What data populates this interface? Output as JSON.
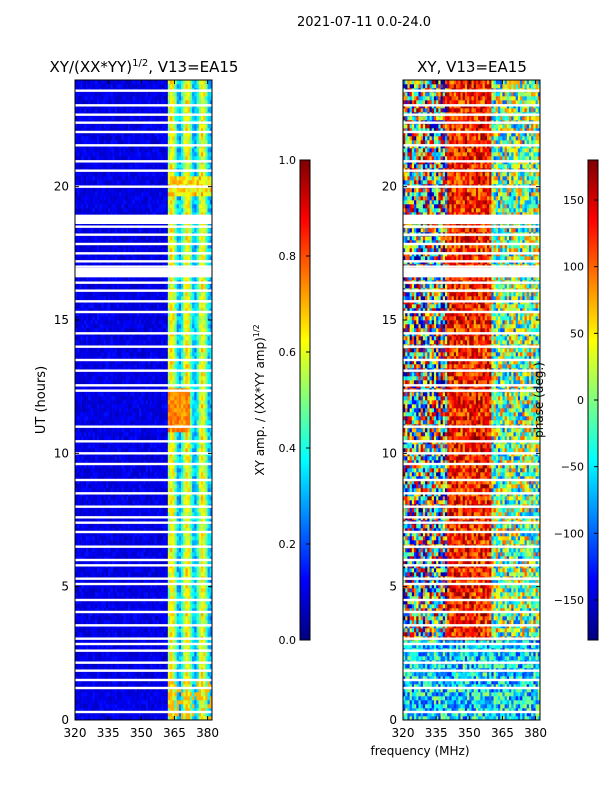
{
  "figure_title": "2021-07-11 0.0-24.0",
  "shared_xlabel": "frequency (MHz)",
  "colormap": [
    "#00007f",
    "#0000ff",
    "#007fff",
    "#00ffff",
    "#7fff7f",
    "#ffff00",
    "#ff7f00",
    "#ff0000",
    "#7f0000"
  ],
  "chart_data": [
    {
      "type": "heatmap",
      "title_main": "XY/(XX*YY)",
      "title_sup": "1/2",
      "title_rest": ", V13=EA15",
      "xlabel": "",
      "ylabel": "UT (hours)",
      "xlim": [
        320,
        382
      ],
      "ylim": [
        0,
        24
      ],
      "xticks": [
        320,
        335,
        350,
        365,
        380
      ],
      "yticks": [
        0,
        5,
        10,
        15,
        20
      ],
      "gap_hours": [
        0.3,
        1.2,
        1.5,
        1.85,
        2.15,
        2.6,
        2.85,
        3.05,
        3.55,
        4.05,
        4.5,
        5.1,
        5.3,
        5.8,
        6.0,
        6.5,
        7.05,
        7.4,
        7.6,
        8.0,
        8.5,
        9.0,
        9.6,
        10.0,
        10.45,
        11.0,
        12.35,
        12.55,
        13.1,
        13.5,
        14.0,
        14.5,
        15.3,
        15.7,
        16.1,
        16.4,
        17.0,
        17.2,
        17.5,
        17.85,
        18.2,
        18.5,
        20.0,
        20.6,
        20.95,
        21.55,
        22.05,
        22.4,
        22.7,
        23.05,
        23.6
      ],
      "gap_blocks": [
        [
          16.6,
          16.95
        ],
        [
          18.6,
          18.95
        ]
      ],
      "colorbar": {
        "label_main": "XY amp. / (XX*YY amp)",
        "label_sup": "1/2",
        "range": [
          0,
          1
        ],
        "ticks": [
          "0.0",
          "0.2",
          "0.4",
          "0.6",
          "0.8",
          "1.0"
        ]
      }
    },
    {
      "type": "heatmap",
      "title_main": "XY, V13=EA15",
      "xlabel": "frequency (MHz)",
      "ylabel": "",
      "xlim": [
        320,
        382
      ],
      "ylim": [
        0,
        24
      ],
      "xticks": [
        320,
        335,
        350,
        365,
        380
      ],
      "yticks": [
        0,
        5,
        10,
        15,
        20
      ],
      "gap_hours": [
        0.3,
        1.2,
        1.5,
        1.85,
        2.15,
        2.6,
        2.85,
        3.05,
        3.55,
        4.05,
        4.5,
        5.1,
        5.3,
        5.8,
        6.0,
        6.5,
        7.05,
        7.4,
        7.6,
        8.0,
        8.5,
        9.0,
        9.6,
        10.0,
        10.45,
        11.0,
        12.35,
        12.55,
        13.1,
        13.5,
        14.0,
        14.5,
        15.3,
        15.7,
        16.1,
        16.4,
        17.0,
        17.2,
        17.5,
        17.85,
        18.2,
        18.5,
        20.0,
        20.6,
        20.95,
        21.55,
        22.05,
        22.4,
        22.7,
        23.05,
        23.6
      ],
      "gap_blocks": [
        [
          16.6,
          16.95
        ],
        [
          18.6,
          18.95
        ]
      ],
      "colorbar": {
        "label_main": "phase (deg.)",
        "range": [
          -180,
          180
        ],
        "ticks": [
          "−150",
          "−100",
          "−50",
          "0",
          "50",
          "100",
          "150"
        ]
      }
    }
  ]
}
